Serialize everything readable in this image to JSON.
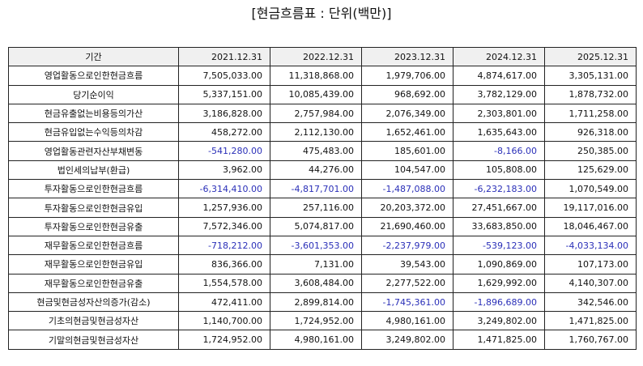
{
  "title": "[현금흐름표 : 단위(백만)]",
  "table": {
    "header": [
      "기간",
      "2021.12.31",
      "2022.12.31",
      "2023.12.31",
      "2024.12.31",
      "2025.12.31"
    ],
    "negative_color": "#2a2fb8",
    "rows": [
      {
        "label": "영업활동으로인한현금흐름",
        "values": [
          "7,505,033.00",
          "11,318,868.00",
          "1,979,706.00",
          "4,874,617.00",
          "3,305,131.00"
        ]
      },
      {
        "label": "당기순이익",
        "values": [
          "5,337,151.00",
          "10,085,439.00",
          "968,692.00",
          "3,782,129.00",
          "1,878,732.00"
        ]
      },
      {
        "label": "현금유출없는비용등의가산",
        "values": [
          "3,186,828.00",
          "2,757,984.00",
          "2,076,349.00",
          "2,303,801.00",
          "1,711,258.00"
        ]
      },
      {
        "label": "현금유입없는수익등의차감",
        "values": [
          "458,272.00",
          "2,112,130.00",
          "1,652,461.00",
          "1,635,643.00",
          "926,318.00"
        ]
      },
      {
        "label": "영업활동관련자산부채변동",
        "values": [
          "-541,280.00",
          "475,483.00",
          "185,601.00",
          "-8,166.00",
          "250,385.00"
        ]
      },
      {
        "label": "법인세의납부(환급)",
        "values": [
          "3,962.00",
          "44,276.00",
          "104,547.00",
          "105,808.00",
          "125,629.00"
        ]
      },
      {
        "label": "투자활동으로인한현금흐름",
        "values": [
          "-6,314,410.00",
          "-4,817,701.00",
          "-1,487,088.00",
          "-6,232,183.00",
          "1,070,549.00"
        ]
      },
      {
        "label": "투자활동으로인한현금유입",
        "values": [
          "1,257,936.00",
          "257,116.00",
          "20,203,372.00",
          "27,451,667.00",
          "19,117,016.00"
        ]
      },
      {
        "label": "투자활동으로인한현금유출",
        "values": [
          "7,572,346.00",
          "5,074,817.00",
          "21,690,460.00",
          "33,683,850.00",
          "18,046,467.00"
        ]
      },
      {
        "label": "재무활동으로인한현금흐름",
        "values": [
          "-718,212.00",
          "-3,601,353.00",
          "-2,237,979.00",
          "-539,123.00",
          "-4,033,134.00"
        ]
      },
      {
        "label": "재무활동으로인한현금유입",
        "values": [
          "836,366.00",
          "7,131.00",
          "39,543.00",
          "1,090,869.00",
          "107,173.00"
        ]
      },
      {
        "label": "재무활동으로인한현금유출",
        "values": [
          "1,554,578.00",
          "3,608,484.00",
          "2,277,522.00",
          "1,629,992.00",
          "4,140,307.00"
        ]
      },
      {
        "label": "현금및현금성자산의증가(감소)",
        "values": [
          "472,411.00",
          "2,899,814.00",
          "-1,745,361.00",
          "-1,896,689.00",
          "342,546.00"
        ]
      },
      {
        "label": "기초의현금및현금성자산",
        "values": [
          "1,140,700.00",
          "1,724,952.00",
          "4,980,161.00",
          "3,249,802.00",
          "1,471,825.00"
        ]
      },
      {
        "label": "기말의현금및현금성자산",
        "values": [
          "1,724,952.00",
          "4,980,161.00",
          "3,249,802.00",
          "1,471,825.00",
          "1,760,767.00"
        ]
      }
    ]
  }
}
